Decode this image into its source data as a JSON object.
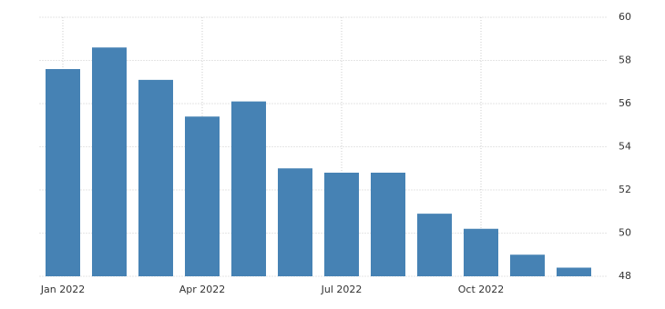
{
  "chart_data": {
    "type": "bar",
    "categories": [
      "Jan 2022",
      null,
      null,
      "Apr 2022",
      null,
      null,
      "Jul 2022",
      null,
      null,
      "Oct 2022",
      null,
      null
    ],
    "values": [
      57.6,
      58.6,
      57.1,
      55.4,
      56.1,
      53.0,
      52.8,
      52.8,
      50.9,
      50.2,
      49.0,
      48.4
    ],
    "color": "#4682b4",
    "ylim": [
      48,
      60
    ],
    "yticks": [
      48,
      50,
      52,
      54,
      56,
      58,
      60
    ],
    "grid": true
  }
}
